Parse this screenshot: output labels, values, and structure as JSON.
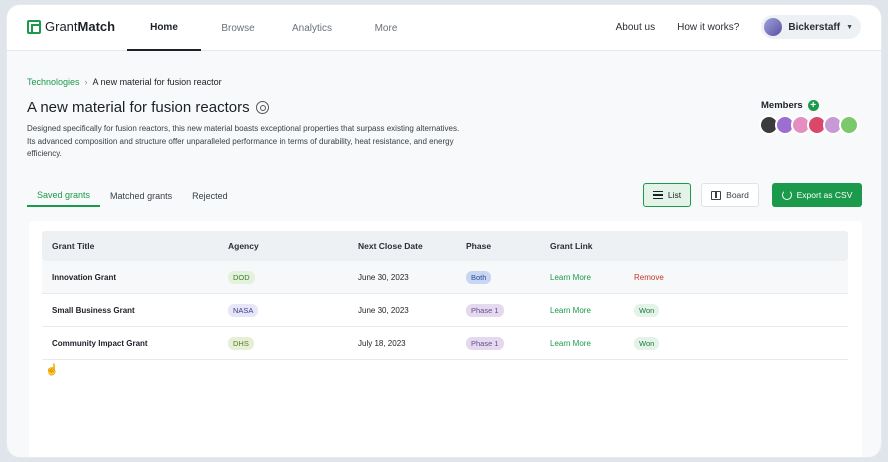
{
  "brand": {
    "name_part1": "Grant",
    "name_part2": "Match"
  },
  "nav": {
    "items": [
      {
        "label": "Home",
        "active": true
      },
      {
        "label": "Browse",
        "active": false
      },
      {
        "label": "Analytics",
        "active": false
      },
      {
        "label": "More",
        "active": false
      }
    ]
  },
  "header_right": {
    "about": "About us",
    "how": "How it works?",
    "user": "Bickerstaff"
  },
  "breadcrumb": {
    "root": "Technologies",
    "current": "A new material for fusion reactor"
  },
  "page": {
    "title": "A new material for fusion reactors",
    "description": "Designed specifically for fusion reactors, this new material boasts exceptional properties that surpass existing alternatives. Its advanced composition and structure offer unparalleled performance in terms of durability, heat resistance, and energy efficiency."
  },
  "members": {
    "label": "Members",
    "avatar_colors": [
      "#3b3b3b",
      "#9b6fd0",
      "#e58ec0",
      "#d9486b",
      "#c79ad6",
      "#7cc96b"
    ]
  },
  "tabs": [
    {
      "label": "Saved grants",
      "active": true
    },
    {
      "label": "Matched grants",
      "active": false
    },
    {
      "label": "Rejected",
      "active": false
    }
  ],
  "toolbar": {
    "list_label": "List",
    "board_label": "Board",
    "export_label": "Export as CSV"
  },
  "table": {
    "headers": [
      "Grant Title",
      "Agency",
      "Next Close Date",
      "Phase",
      "Grant Link"
    ],
    "rows": [
      {
        "title": "Innovation Grant",
        "agency": "DOD",
        "agency_bg": "#e2f2dc",
        "agency_fg": "#3a7d2a",
        "date": "June 30, 2023",
        "phase": "Both",
        "phase_bg": "#c9d6f2",
        "phase_fg": "#2b4b9b",
        "link": "Learn More",
        "status": "Remove",
        "status_type": "remove"
      },
      {
        "title": "Small Business Grant",
        "agency": "NASA",
        "agency_bg": "#e6e6f7",
        "agency_fg": "#3a3f8f",
        "date": "June 30, 2023",
        "phase": "Phase 1",
        "phase_bg": "#e5d9ef",
        "phase_fg": "#6a4b8a",
        "link": "Learn More",
        "status": "Won",
        "status_type": "won"
      },
      {
        "title": "Community Impact Grant",
        "agency": "DHS",
        "agency_bg": "#e6efd6",
        "agency_fg": "#5b7a2a",
        "date": "July 18, 2023",
        "phase": "Phase 1",
        "phase_bg": "#e5d9ef",
        "phase_fg": "#6a4b8a",
        "link": "Learn More",
        "status": "Won",
        "status_type": "won"
      }
    ]
  }
}
